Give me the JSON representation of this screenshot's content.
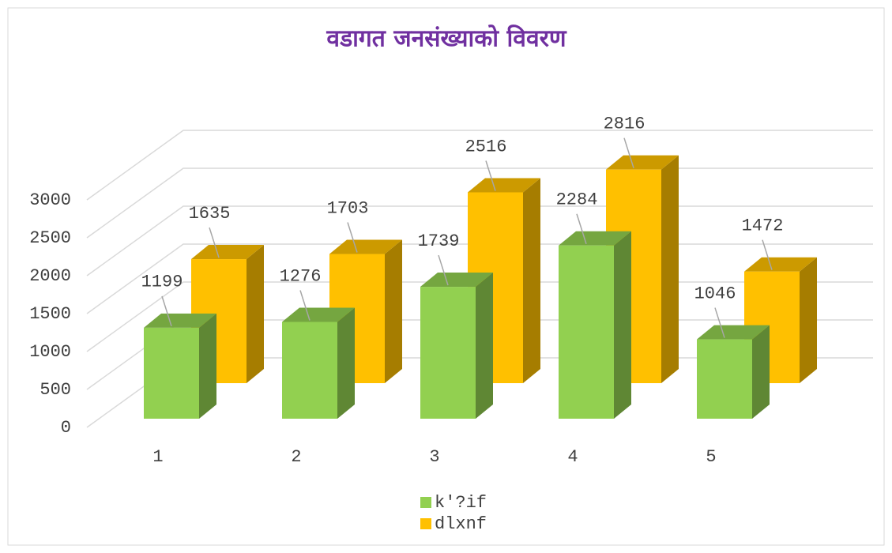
{
  "chart_data": {
    "type": "bar3d",
    "title": "वडागत जनसंख्याको विवरण",
    "categories": [
      "1",
      "2",
      "3",
      "4",
      "5"
    ],
    "series": [
      {
        "name": "k'?if",
        "color": "#92d050",
        "values": [
          1199,
          1276,
          1739,
          2284,
          1046
        ]
      },
      {
        "name": "dlxnf",
        "color": "#ffc000",
        "values": [
          1635,
          1703,
          2516,
          2816,
          1472
        ]
      }
    ],
    "ylim": [
      0,
      3000
    ],
    "yticks": [
      0,
      500,
      1000,
      1500,
      2000,
      2500,
      3000
    ],
    "grid": true,
    "legend": "bottom"
  }
}
